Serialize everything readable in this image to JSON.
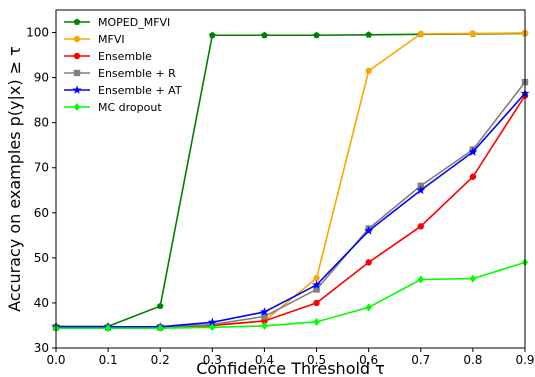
{
  "chart_data": {
    "type": "line",
    "title": "",
    "xlabel": "Confidence Threshold τ",
    "ylabel": "Accuracy on examples p(y|x)  ≥ τ",
    "xlim": [
      0.0,
      0.9
    ],
    "ylim": [
      30,
      105
    ],
    "x": [
      0.0,
      0.1,
      0.2,
      0.3,
      0.4,
      0.5,
      0.6,
      0.7,
      0.8,
      0.9
    ],
    "x_ticks": [
      "0.0",
      "0.1",
      "0.2",
      "0.3",
      "0.4",
      "0.5",
      "0.6",
      "0.7",
      "0.8",
      "0.9"
    ],
    "y_ticks": [
      "30",
      "40",
      "50",
      "60",
      "70",
      "80",
      "90",
      "100"
    ],
    "grid": false,
    "legend_position": "top-left",
    "series": [
      {
        "name": "MOPED_MFVI",
        "color": "#008000",
        "marker": "pentagon",
        "values": [
          34.8,
          34.8,
          39.3,
          99.4,
          99.4,
          99.4,
          99.5,
          99.6,
          99.7,
          99.8
        ]
      },
      {
        "name": "MFVI",
        "color": "#FFA500",
        "marker": "circle",
        "values": [
          34.6,
          34.6,
          34.6,
          35.0,
          36.0,
          45.5,
          91.5,
          99.7,
          99.8,
          99.9
        ]
      },
      {
        "name": "Ensemble",
        "color": "#FF0000",
        "marker": "circle",
        "values": [
          34.5,
          34.5,
          34.5,
          35.0,
          36.0,
          40.0,
          49.0,
          57.0,
          68.0,
          86.0
        ]
      },
      {
        "name": "Ensemble + R",
        "color": "#808080",
        "marker": "square",
        "values": [
          34.6,
          34.6,
          34.6,
          35.2,
          37.0,
          43.0,
          56.5,
          66.0,
          74.0,
          89.0
        ]
      },
      {
        "name": "Ensemble + AT",
        "color": "#0000FF",
        "marker": "star",
        "values": [
          34.7,
          34.7,
          34.7,
          35.7,
          38.0,
          44.0,
          56.0,
          65.0,
          73.5,
          86.5
        ]
      },
      {
        "name": "MC dropout",
        "color": "#00FF00",
        "marker": "diamond",
        "values": [
          34.4,
          34.4,
          34.4,
          34.6,
          34.9,
          35.8,
          39.0,
          45.2,
          45.4,
          49.0
        ]
      }
    ]
  }
}
